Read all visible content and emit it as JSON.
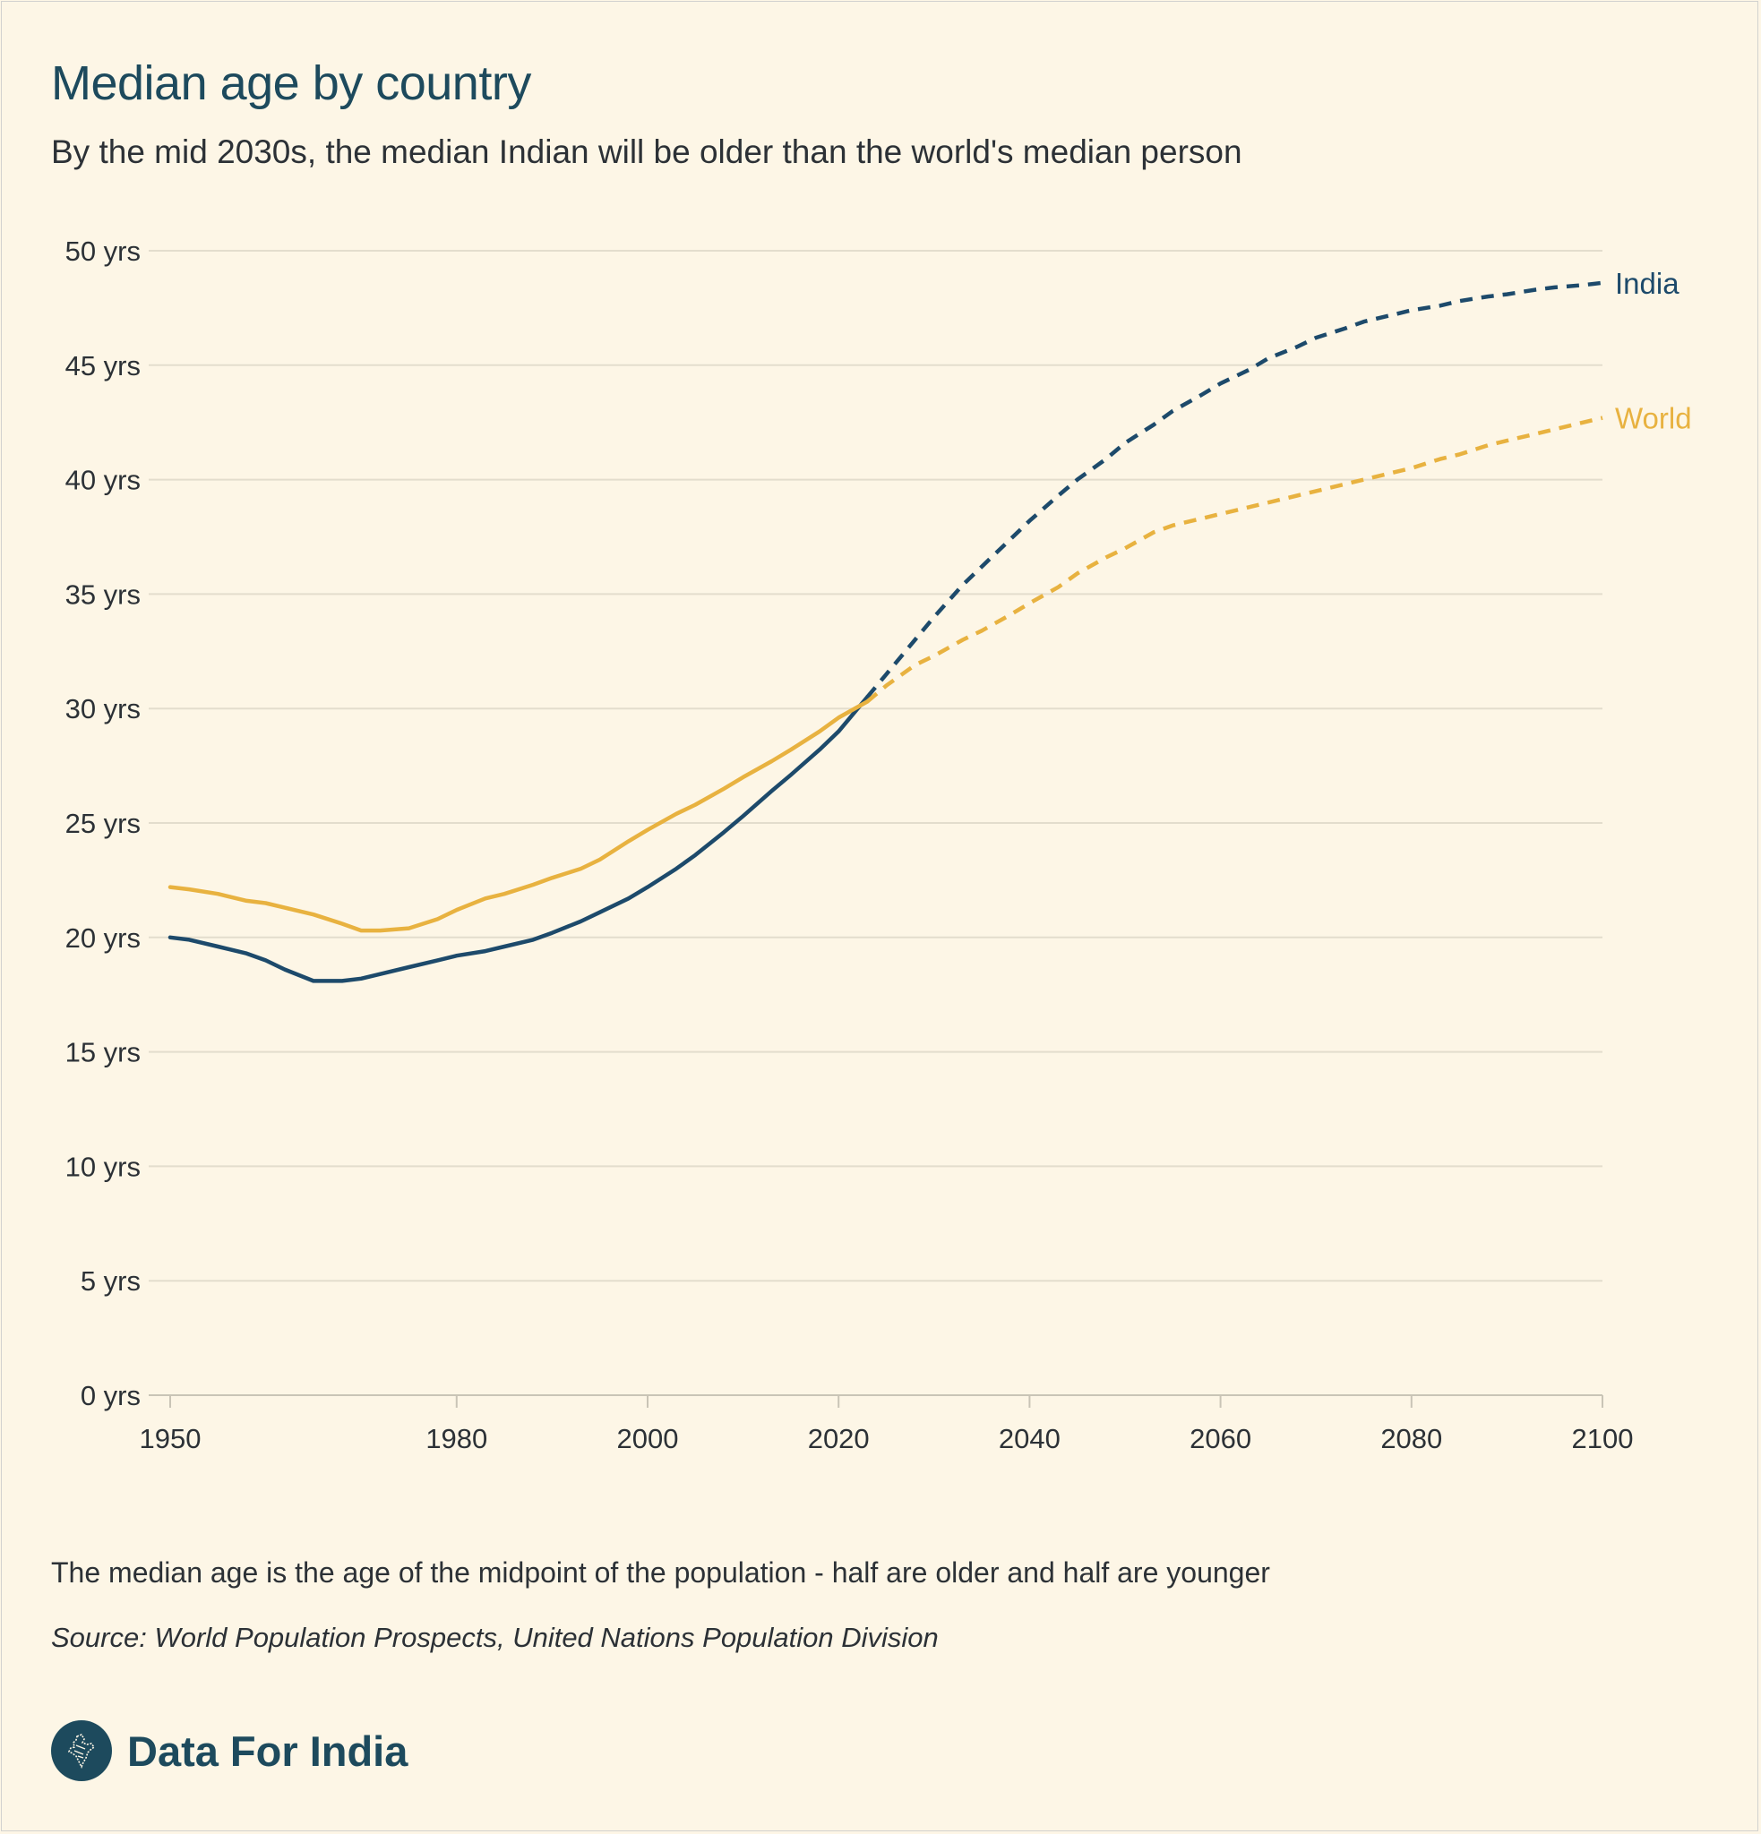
{
  "header": {
    "title": "Median age by country",
    "subtitle": "By the mid 2030s, the median Indian will be older than the world's median person"
  },
  "footer": {
    "note": "The median age is the age of the midpoint of the population - half are older and half are younger",
    "source": "Source: World Population Prospects, United Nations Population Division",
    "brand": "Data For India",
    "brand_icon": "india-map-icon"
  },
  "colors": {
    "background": "#fdf6e6",
    "india": "#1d4a6b",
    "world": "#e8b240",
    "grid": "#e3ddcd",
    "axis": "#c9c4b6",
    "text": "#2c3136",
    "title": "#1d4a5d"
  },
  "chart_data": {
    "type": "line",
    "title": "Median age by country",
    "xlabel": "",
    "ylabel": "",
    "xlim": [
      1950,
      2100
    ],
    "ylim": [
      0,
      50
    ],
    "x_ticks": [
      1950,
      1980,
      2000,
      2020,
      2040,
      2060,
      2080,
      2100
    ],
    "x_tick_labels": [
      "1950",
      "1980",
      "2000",
      "2020",
      "2040",
      "2060",
      "2080",
      "2100"
    ],
    "y_ticks": [
      0,
      5,
      10,
      15,
      20,
      25,
      30,
      35,
      40,
      45,
      50
    ],
    "y_tick_labels": [
      "0 yrs",
      "5 yrs",
      "10 yrs",
      "15 yrs",
      "20 yrs",
      "25 yrs",
      "30 yrs",
      "35 yrs",
      "40 yrs",
      "45 yrs",
      "50 yrs"
    ],
    "grid": true,
    "projection_start": 2023,
    "legend": "inline labels at line ends",
    "series": [
      {
        "name": "India",
        "color": "#1d4a6b",
        "x": [
          1950,
          1952,
          1955,
          1958,
          1960,
          1962,
          1965,
          1968,
          1970,
          1972,
          1975,
          1978,
          1980,
          1983,
          1985,
          1988,
          1990,
          1993,
          1995,
          1998,
          2000,
          2003,
          2005,
          2008,
          2010,
          2013,
          2015,
          2018,
          2020,
          2023,
          2025,
          2028,
          2030,
          2033,
          2035,
          2038,
          2040,
          2043,
          2045,
          2048,
          2050,
          2053,
          2055,
          2058,
          2060,
          2063,
          2065,
          2068,
          2070,
          2073,
          2075,
          2078,
          2080,
          2083,
          2085,
          2088,
          2090,
          2093,
          2095,
          2098,
          2100
        ],
        "values": [
          20.0,
          19.9,
          19.6,
          19.3,
          19.0,
          18.6,
          18.1,
          18.1,
          18.2,
          18.4,
          18.7,
          19.0,
          19.2,
          19.4,
          19.6,
          19.9,
          20.2,
          20.7,
          21.1,
          21.7,
          22.2,
          23.0,
          23.6,
          24.6,
          25.3,
          26.4,
          27.1,
          28.2,
          29.0,
          30.5,
          31.5,
          33.0,
          34.0,
          35.4,
          36.2,
          37.4,
          38.2,
          39.3,
          40.0,
          40.9,
          41.6,
          42.4,
          43.0,
          43.7,
          44.2,
          44.8,
          45.3,
          45.8,
          46.2,
          46.6,
          46.9,
          47.2,
          47.4,
          47.6,
          47.8,
          48.0,
          48.1,
          48.3,
          48.4,
          48.5,
          48.6
        ]
      },
      {
        "name": "World",
        "color": "#e8b240",
        "x": [
          1950,
          1952,
          1955,
          1958,
          1960,
          1962,
          1965,
          1968,
          1970,
          1972,
          1975,
          1978,
          1980,
          1983,
          1985,
          1988,
          1990,
          1993,
          1995,
          1998,
          2000,
          2003,
          2005,
          2008,
          2010,
          2013,
          2015,
          2018,
          2020,
          2023,
          2025,
          2028,
          2030,
          2033,
          2035,
          2038,
          2040,
          2043,
          2045,
          2048,
          2050,
          2053,
          2055,
          2058,
          2060,
          2063,
          2065,
          2068,
          2070,
          2073,
          2075,
          2078,
          2080,
          2083,
          2085,
          2088,
          2090,
          2093,
          2095,
          2098,
          2100
        ],
        "values": [
          22.2,
          22.1,
          21.9,
          21.6,
          21.5,
          21.3,
          21.0,
          20.6,
          20.3,
          20.3,
          20.4,
          20.8,
          21.2,
          21.7,
          21.9,
          22.3,
          22.6,
          23.0,
          23.4,
          24.2,
          24.7,
          25.4,
          25.8,
          26.5,
          27.0,
          27.7,
          28.2,
          29.0,
          29.6,
          30.3,
          31.0,
          31.9,
          32.3,
          33.0,
          33.4,
          34.1,
          34.6,
          35.3,
          35.9,
          36.6,
          37.0,
          37.7,
          38.0,
          38.3,
          38.5,
          38.8,
          39.0,
          39.3,
          39.5,
          39.8,
          40.0,
          40.3,
          40.5,
          40.9,
          41.1,
          41.5,
          41.7,
          42.0,
          42.2,
          42.5,
          42.7
        ]
      }
    ]
  }
}
